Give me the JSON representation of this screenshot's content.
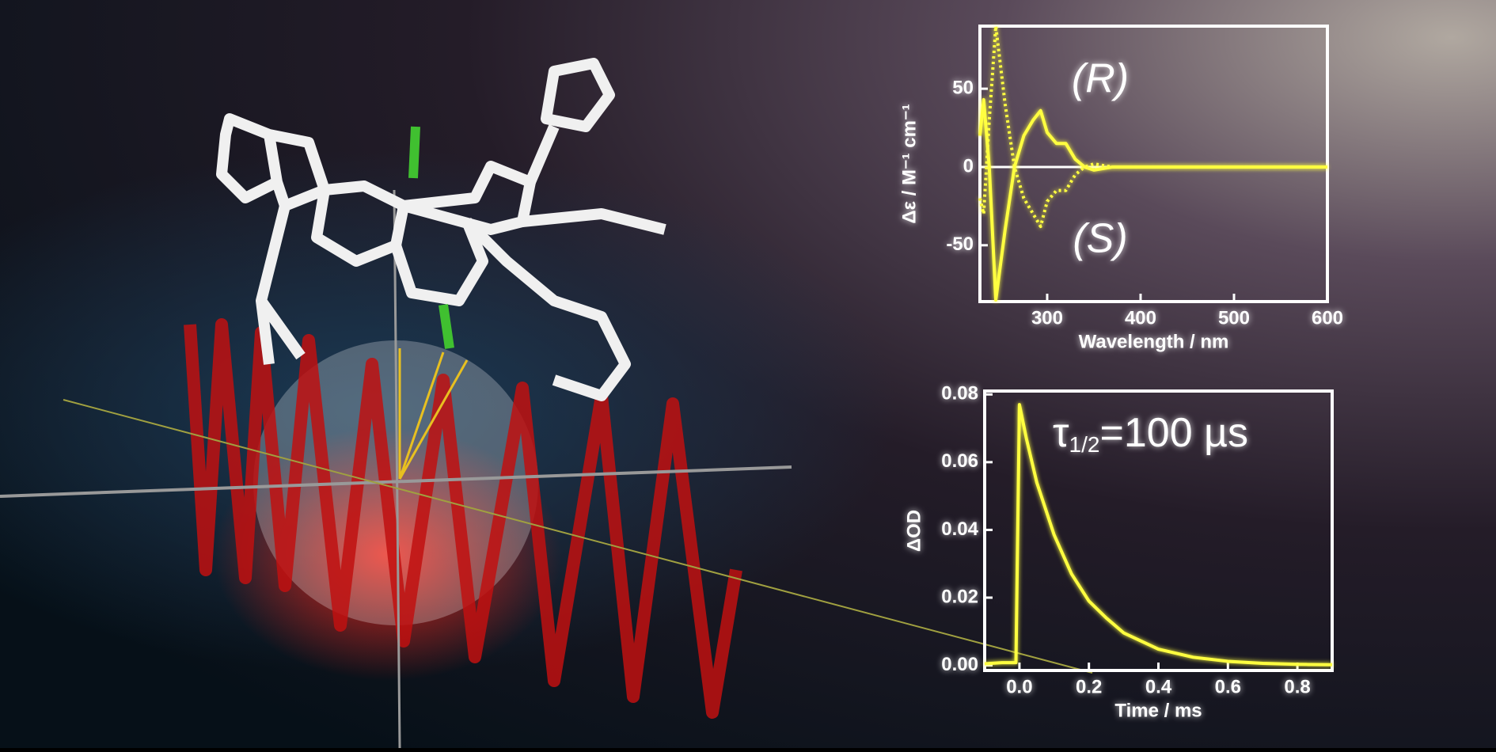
{
  "chart_data": [
    {
      "type": "line",
      "x_label": "Wavelength  / nm",
      "y_label": "Δε / M⁻¹ cm⁻¹",
      "annotations": [
        "(R)",
        "(S)"
      ],
      "x": [
        228,
        232,
        238,
        245,
        255,
        265,
        275,
        285,
        293,
        300,
        310,
        320,
        330,
        340,
        350,
        370,
        400,
        450,
        500,
        550,
        600
      ],
      "series": [
        {
          "color": "#ffff40",
          "dash": "solid",
          "values": [
            20,
            43,
            0,
            -85,
            -40,
            0,
            20,
            30,
            36,
            22,
            15,
            15,
            5,
            0,
            -2,
            0,
            0,
            0,
            0,
            0,
            0
          ]
        },
        {
          "color": "#ffff40",
          "dash": "dotted",
          "values": [
            -20,
            -30,
            30,
            90,
            40,
            0,
            -20,
            -30,
            -38,
            -22,
            -15,
            -15,
            -5,
            0,
            2,
            0,
            0,
            0,
            0,
            0,
            0
          ]
        }
      ],
      "xlim": [
        228,
        600
      ],
      "ylim": [
        -86,
        90
      ],
      "xticks": [
        300,
        400,
        500,
        600
      ],
      "yticks": [
        -50,
        0,
        50
      ],
      "zero_line": true
    },
    {
      "type": "line",
      "x_label": "Time  / ms",
      "y_label": "ΔOD",
      "annotation": {
        "symbol": "τ",
        "subscript": "1/2",
        "text": "=100 µs"
      },
      "x": [
        -0.1,
        -0.05,
        -0.01,
        0,
        0.02,
        0.05,
        0.1,
        0.15,
        0.2,
        0.25,
        0.3,
        0.4,
        0.5,
        0.6,
        0.7,
        0.8,
        0.9
      ],
      "series": [
        {
          "color": "#ffff40",
          "dash": "solid",
          "values": [
            0.0005,
            0.0008,
            0.0008,
            0.077,
            0.067,
            0.054,
            0.0385,
            0.027,
            0.019,
            0.014,
            0.0096,
            0.0048,
            0.0024,
            0.0012,
            0.0006,
            0.0003,
            0.0002
          ]
        }
      ],
      "xlim": [
        -0.1,
        0.9
      ],
      "ylim": [
        -0.0015,
        0.081
      ],
      "xticks": [
        {
          "value": 0,
          "label": "0.0"
        },
        0.2,
        0.4,
        0.6,
        0.8
      ],
      "yticks": [
        {
          "value": 0,
          "label": "0.00"
        },
        0.02,
        0.04,
        0.06,
        0.08
      ]
    }
  ]
}
